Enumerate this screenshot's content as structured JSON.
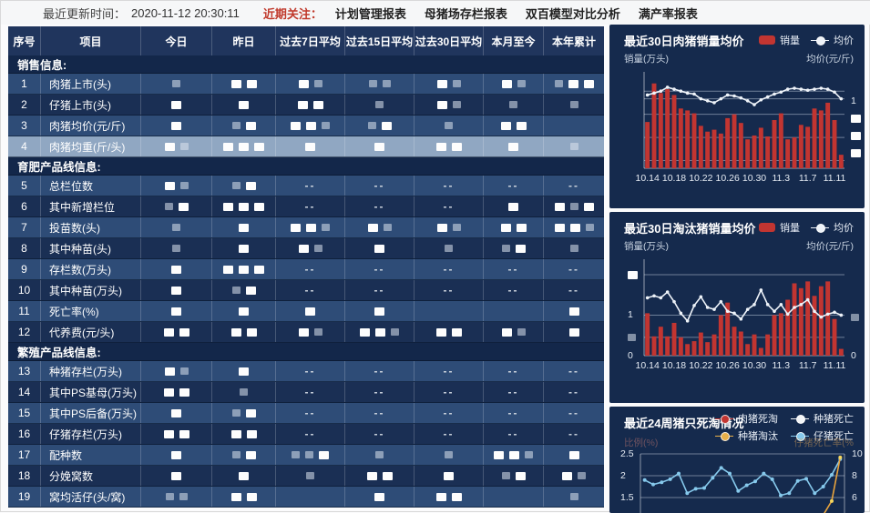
{
  "topbar": {
    "update_label": "最近更新时间：",
    "update_time": "2020-11-12 20:30:11",
    "focus_label": "近期关注：",
    "focus_color": "#c0392b",
    "links": [
      "计划管理报表",
      "母猪场存栏报表",
      "双百模型对比分析",
      "满产率报表"
    ]
  },
  "table": {
    "columns": [
      "序号",
      "项目",
      "今日",
      "昨日",
      "过去7日平均",
      "过去15日平均",
      "过去30日平均",
      "本月至今",
      "本年累计"
    ],
    "highlight_row": 4,
    "sections": [
      {
        "title": "销售信息:",
        "rows": [
          {
            "num": "1",
            "label": "肉猪上市(头)",
            "cells": [
              "g",
              "ww",
              "wg",
              "gg",
              "wg",
              "wg",
              "gww"
            ]
          },
          {
            "num": "2",
            "label": "仔猪上市(头)",
            "cells": [
              "w",
              "w",
              "ww",
              "g",
              "wg",
              "g",
              "g"
            ]
          },
          {
            "num": "3",
            "label": "肉猪均价(元/斤)",
            "cells": [
              "w",
              "gw",
              "wwg",
              "gw",
              "g",
              "ww",
              ""
            ]
          },
          {
            "num": "4",
            "label": "肉猪均重(斤/头)",
            "cells": [
              "wg",
              "www",
              "w",
              "w",
              "ww",
              "w",
              "g"
            ]
          }
        ]
      },
      {
        "title": "育肥产品线信息:",
        "rows": [
          {
            "num": "5",
            "label": "总栏位数",
            "cells": [
              "wg",
              "gw",
              "--",
              "--",
              "--",
              "--",
              "--"
            ]
          },
          {
            "num": "6",
            "label": "其中新增栏位",
            "cells": [
              "gw",
              "www",
              "--",
              "--",
              "--",
              "w",
              "wgw"
            ]
          },
          {
            "num": "7",
            "label": "投苗数(头)",
            "cells": [
              "g",
              "w",
              "wwg",
              "wg",
              "wg",
              "ww",
              "wwg"
            ]
          },
          {
            "num": "8",
            "label": "其中种苗(头)",
            "cells": [
              "g",
              "w",
              "wg",
              "w",
              "g",
              "gw",
              "g"
            ]
          },
          {
            "num": "9",
            "label": "存栏数(万头)",
            "cells": [
              "w",
              "www",
              "--",
              "--",
              "--",
              "--",
              "--"
            ]
          },
          {
            "num": "10",
            "label": "其中种苗(万头)",
            "cells": [
              "w",
              "gw",
              "--",
              "--",
              "--",
              "--",
              "--"
            ]
          },
          {
            "num": "11",
            "label": "死亡率(%)",
            "cells": [
              "w",
              "w",
              "w",
              "w",
              "",
              "",
              "w"
            ]
          },
          {
            "num": "12",
            "label": "代养费(元/头)",
            "cells": [
              "ww",
              "ww",
              "wg",
              "wwg",
              "ww",
              "wg",
              "w"
            ]
          }
        ]
      },
      {
        "title": "繁殖产品线信息:",
        "rows": [
          {
            "num": "13",
            "label": "种猪存栏(万头)",
            "cells": [
              "wg",
              "w",
              "--",
              "--",
              "--",
              "--",
              "--"
            ]
          },
          {
            "num": "14",
            "label": "其中PS基母(万头)",
            "cells": [
              "ww",
              "g",
              "--",
              "--",
              "--",
              "--",
              "--"
            ]
          },
          {
            "num": "15",
            "label": "其中PS后备(万头)",
            "cells": [
              "w",
              "gw",
              "--",
              "--",
              "--",
              "--",
              "--"
            ]
          },
          {
            "num": "16",
            "label": "仔猪存栏(万头)",
            "cells": [
              "ww",
              "ww",
              "--",
              "--",
              "--",
              "--",
              "--"
            ]
          },
          {
            "num": "17",
            "label": "配种数",
            "cells": [
              "w",
              "gw",
              "ggw",
              "g",
              "g",
              "wwg",
              "w"
            ]
          },
          {
            "num": "18",
            "label": "分娩窝数",
            "cells": [
              "w",
              "w",
              "g",
              "ww",
              "w",
              "gw",
              "wg"
            ]
          },
          {
            "num": "19",
            "label": "窝均活仔(头/窝)",
            "cells": [
              "gg",
              "ww",
              "",
              "w",
              "ww",
              "",
              "g"
            ]
          }
        ]
      }
    ]
  },
  "chart_data": [
    {
      "type": "bar",
      "title": "最近30日肉猪销量均价",
      "legend": [
        {
          "label": "销量",
          "kind": "bar",
          "color": "#c23531"
        },
        {
          "label": "均价",
          "kind": "line",
          "color": "#eef3f9"
        }
      ],
      "ylabel_left": "销量(万头)",
      "ylabel_right": "均价(元/斤)",
      "x_ticks": [
        "10.14",
        "10.18",
        "10.22",
        "10.26",
        "10.30",
        "11.3",
        "11.7",
        "11.11"
      ],
      "note": "axis values redacted in source; series stored as % of plot height",
      "bars_pct": [
        48,
        88,
        78,
        82,
        76,
        62,
        60,
        57,
        44,
        38,
        40,
        36,
        52,
        56,
        47,
        30,
        34,
        42,
        33,
        50,
        57,
        30,
        32,
        45,
        43,
        62,
        60,
        68,
        50,
        14
      ],
      "line_pct": [
        76,
        78,
        80,
        84,
        82,
        80,
        78,
        77,
        72,
        70,
        68,
        72,
        76,
        75,
        73,
        70,
        66,
        71,
        74,
        77,
        79,
        82,
        83,
        82,
        81,
        82,
        83,
        82,
        79,
        72
      ],
      "gridlines_pct": [
        80,
        72,
        56,
        32,
        8
      ],
      "left_ticks": [],
      "right_ticks": [
        {
          "v": 70,
          "t": "1"
        },
        {
          "v": 52,
          "t": "#w"
        },
        {
          "v": 34,
          "t": "#w"
        },
        {
          "v": 16,
          "t": "#w"
        }
      ],
      "bar_color": "#c23531",
      "line_color": "#eef3f9"
    },
    {
      "type": "bar",
      "title": "最近30日淘汰猪销量均价",
      "legend": [
        {
          "label": "销量",
          "kind": "bar",
          "color": "#c23531"
        },
        {
          "label": "均价",
          "kind": "line",
          "color": "#eef3f9"
        }
      ],
      "ylabel_left": "销量(万头)",
      "ylabel_right": "均价(元/斤)",
      "x_ticks": [
        "10.14",
        "10.18",
        "10.22",
        "10.26",
        "10.30",
        "11.3",
        "11.7",
        "11.11"
      ],
      "note": "axis values partly redacted in source; series stored as % of plot height",
      "bars_pct": [
        44,
        20,
        30,
        20,
        34,
        19,
        12,
        15,
        24,
        14,
        22,
        42,
        55,
        30,
        25,
        12,
        22,
        8,
        22,
        42,
        44,
        58,
        75,
        70,
        77,
        62,
        72,
        77,
        38,
        7
      ],
      "line_pct": [
        60,
        62,
        60,
        66,
        56,
        44,
        36,
        52,
        61,
        50,
        48,
        56,
        46,
        44,
        38,
        48,
        53,
        68,
        53,
        46,
        53,
        43,
        50,
        53,
        58,
        46,
        40,
        43,
        45,
        42
      ],
      "gridlines_pct": [
        84,
        42,
        19
      ],
      "left_ticks": [
        {
          "v": 84,
          "t": "#w"
        },
        {
          "v": 42,
          "t": "1"
        },
        {
          "v": 19,
          "t": "#g"
        },
        {
          "v": 0,
          "t": "0"
        }
      ],
      "right_ticks": [
        {
          "v": 40,
          "t": "#g"
        },
        {
          "v": 0,
          "t": "0"
        }
      ],
      "bar_color": "#c23531",
      "line_color": "#eef3f9"
    },
    {
      "type": "line",
      "title": "最近24周猪只死淘情况",
      "legend": [
        {
          "label": "肉猪死淘",
          "kind": "line",
          "color": "#c23531"
        },
        {
          "label": "种猪死亡",
          "kind": "line",
          "color": "#f3f5f7"
        },
        {
          "label": "种猪淘汰",
          "kind": "line",
          "color": "#e8b04a"
        },
        {
          "label": "仔猪死亡",
          "kind": "line",
          "color": "#86c9ec"
        }
      ],
      "ylabel_left": "比例(%)",
      "ylabel_right": "仔猪死亡率(%",
      "left_ticks_vals": [
        "2.5",
        "2",
        "1.5"
      ],
      "right_ticks_vals": [
        "10",
        "8",
        "6"
      ],
      "y_left_range": [
        1.5,
        2.5
      ],
      "y_right_range": [
        6,
        10
      ],
      "series": [
        {
          "name": "仔猪死亡",
          "color": "#86c9ec",
          "values": [
            1.9,
            1.8,
            1.85,
            1.92,
            2.05,
            1.6,
            1.7,
            1.72,
            1.95,
            2.18,
            2.05,
            1.65,
            1.78,
            1.87,
            2.05,
            1.92,
            1.55,
            1.6,
            1.88,
            1.93,
            1.6,
            1.75,
            2.02,
            2.38
          ]
        },
        {
          "name": "种猪淘汰",
          "color": "#e8a33d",
          "values": [
            1.1,
            1.1,
            1.1,
            1.1,
            1.1,
            1.1,
            1.1,
            1.1,
            1.1,
            1.1,
            1.1,
            1.1,
            1.1,
            1.1,
            1.1,
            1.1,
            1.1,
            1.1,
            1.1,
            1.1,
            1.1,
            1.1,
            1.42,
            2.42
          ]
        }
      ]
    }
  ]
}
